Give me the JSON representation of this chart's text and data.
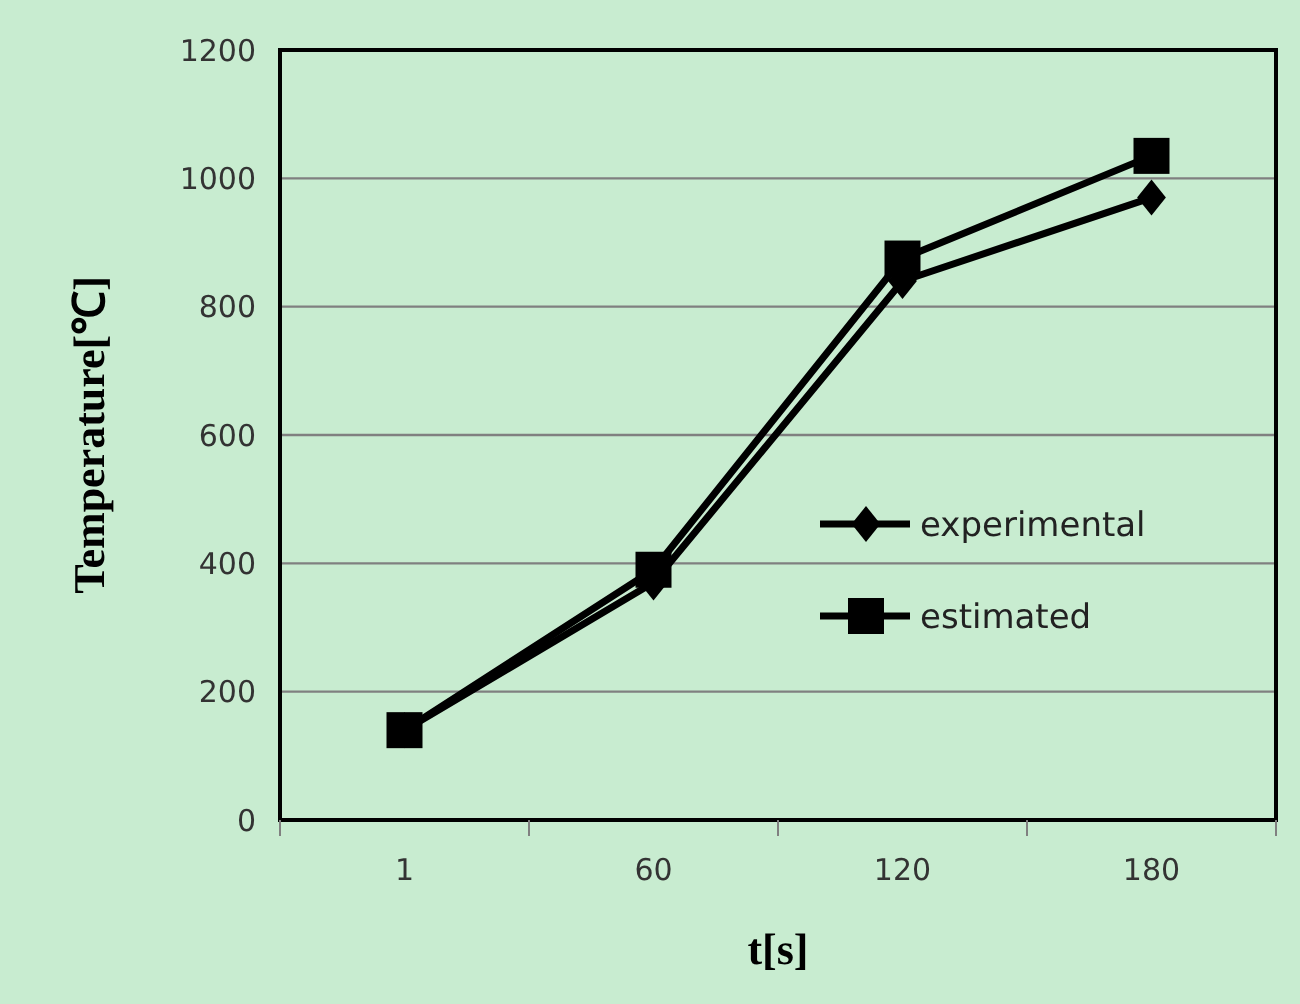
{
  "chart_data": {
    "type": "line",
    "xlabel": "t[s]",
    "ylabel": "Temperature[℃]",
    "categories": [
      "1",
      "60",
      "120",
      "180"
    ],
    "ylim": [
      0,
      1200
    ],
    "yticks": [
      0,
      200,
      400,
      600,
      800,
      1000,
      1200
    ],
    "grid": "y",
    "legend": "right",
    "line_style": "solid",
    "series": [
      {
        "name": "experimental",
        "color": "#000000",
        "marker": "diamond",
        "values": [
          140,
          370,
          840,
          970
        ]
      },
      {
        "name": "estimated",
        "color": "#000000",
        "marker": "square",
        "values": [
          140,
          390,
          875,
          1035
        ]
      }
    ]
  }
}
